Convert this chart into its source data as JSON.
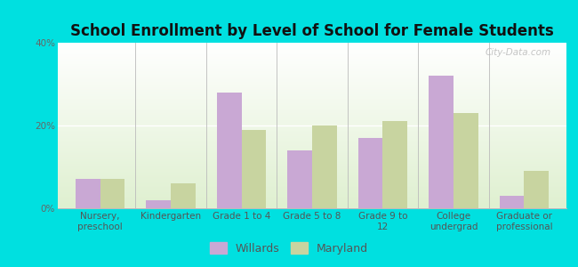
{
  "title": "School Enrollment by Level of School for Female Students",
  "categories": [
    "Nursery,\npreschool",
    "Kindergarten",
    "Grade 1 to 4",
    "Grade 5 to 8",
    "Grade 9 to\n12",
    "College\nundergrad",
    "Graduate or\nprofessional"
  ],
  "willards": [
    7,
    2,
    28,
    14,
    17,
    32,
    3
  ],
  "maryland": [
    7,
    6,
    19,
    20,
    21,
    23,
    9
  ],
  "willards_color": "#c9a8d4",
  "maryland_color": "#c8d4a0",
  "background_color": "#00e0e0",
  "ylim": [
    0,
    40
  ],
  "yticks": [
    0,
    20,
    40
  ],
  "ytick_labels": [
    "0%",
    "20%",
    "40%"
  ],
  "bar_width": 0.35,
  "legend_labels": [
    "Willards",
    "Maryland"
  ],
  "watermark": "City-Data.com",
  "title_fontsize": 12,
  "tick_fontsize": 7.5,
  "legend_fontsize": 9
}
